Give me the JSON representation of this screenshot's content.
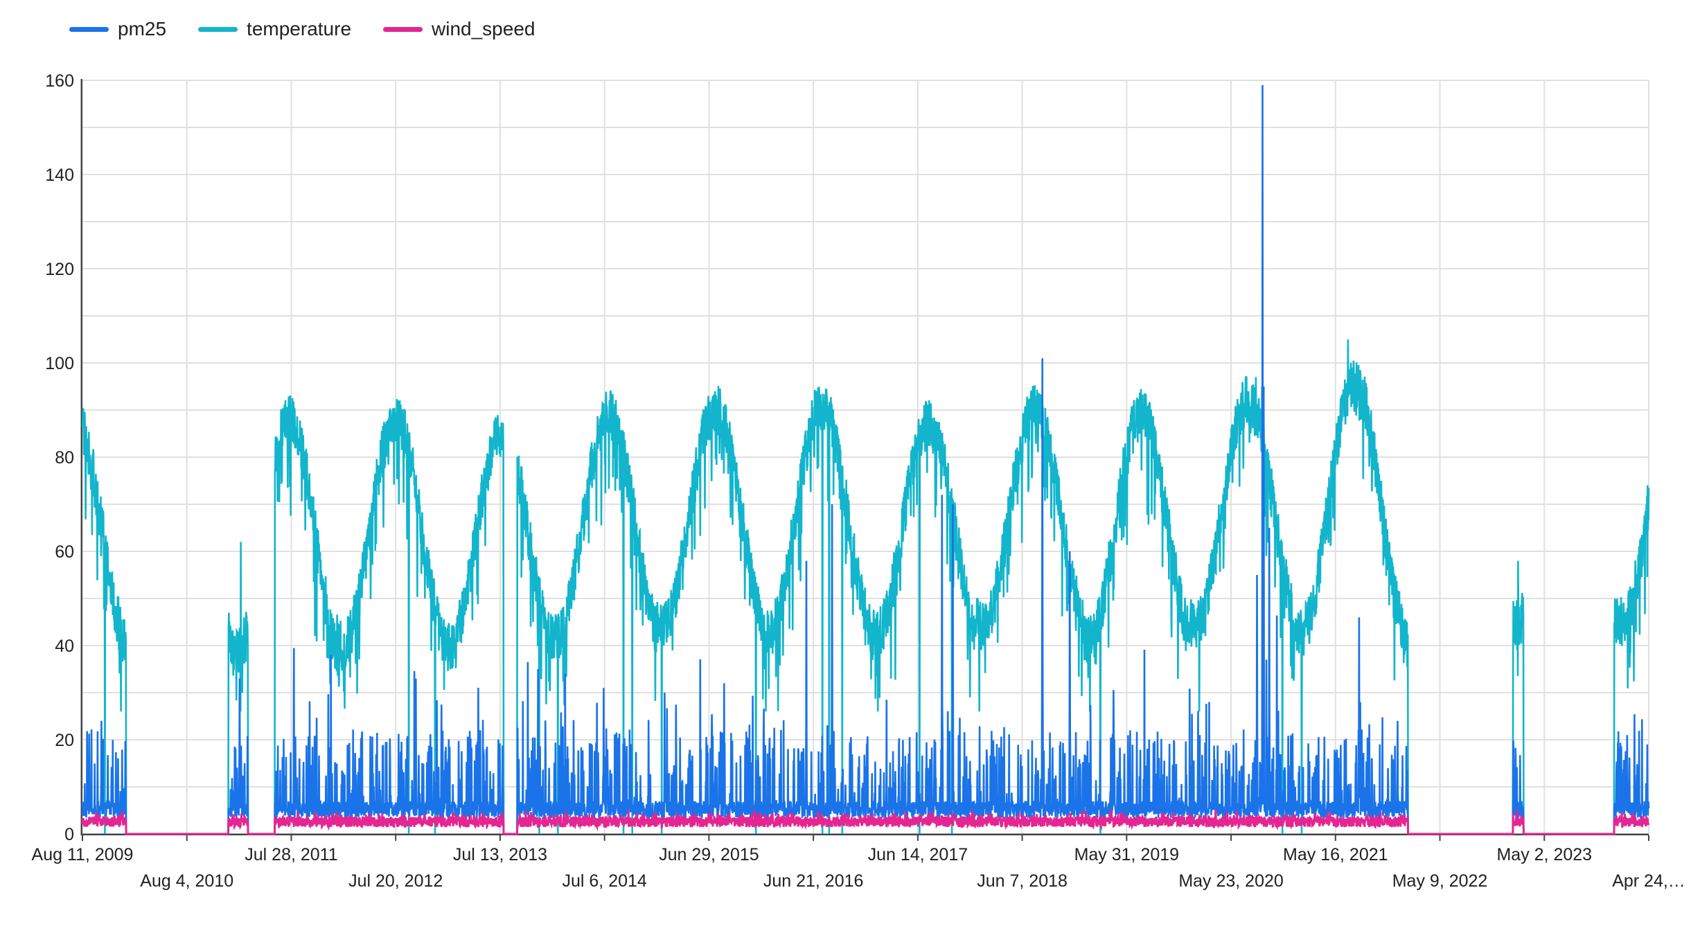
{
  "seed": 20240424,
  "colors": {
    "background": "#ffffff",
    "grid": "#e0e0e0",
    "axis": "#424242",
    "text": "#202124"
  },
  "legend": {
    "items": [
      {
        "label": "pm25",
        "color": "#1a73e8"
      },
      {
        "label": "temperature",
        "color": "#12b5cb"
      },
      {
        "label": "wind_speed",
        "color": "#e52592"
      }
    ]
  },
  "chart_data": {
    "type": "line",
    "title": "",
    "legend_position": "top-left",
    "grid": "on",
    "series": [
      {
        "name": "pm25",
        "color": "#1a73e8",
        "typical_range": [
          2,
          18
        ]
      },
      {
        "name": "temperature",
        "color": "#12b5cb",
        "typical_range": [
          30,
          95
        ]
      },
      {
        "name": "wind_speed",
        "color": "#e52592",
        "typical_range": [
          1,
          7
        ]
      }
    ],
    "x_axis": {
      "start_date": "2009-08-11",
      "end_date": "2024-04-24",
      "tick_interval_days": 358,
      "ticks": [
        {
          "label": "Aug 11, 2009",
          "row": 1
        },
        {
          "label": "Aug 4, 2010",
          "row": 2
        },
        {
          "label": "Jul 28, 2011",
          "row": 1
        },
        {
          "label": "Jul 20, 2012",
          "row": 2
        },
        {
          "label": "Jul 13, 2013",
          "row": 1
        },
        {
          "label": "Jul 6, 2014",
          "row": 2
        },
        {
          "label": "Jun 29, 2015",
          "row": 1
        },
        {
          "label": "Jun 21, 2016",
          "row": 2
        },
        {
          "label": "Jun 14, 2017",
          "row": 1
        },
        {
          "label": "Jun 7, 2018",
          "row": 2
        },
        {
          "label": "May 31, 2019",
          "row": 1
        },
        {
          "label": "May 23, 2020",
          "row": 2
        },
        {
          "label": "May 16, 2021",
          "row": 1
        },
        {
          "label": "May 9, 2022",
          "row": 2
        },
        {
          "label": "May 2, 2023",
          "row": 1
        },
        {
          "label": "Apr 24,…",
          "row": 2
        }
      ]
    },
    "y_axis": {
      "min": 0,
      "max": 160,
      "label_step": 20,
      "grid_step": 10,
      "tick_labels": [
        "0",
        "20",
        "40",
        "60",
        "80",
        "100",
        "120",
        "140",
        "160"
      ]
    },
    "y_max_observed": 159,
    "gaps": [
      [
        "2010-01-08",
        "2010-12-25"
      ],
      [
        "2011-03-02",
        "2011-06-02"
      ],
      [
        "2013-07-25",
        "2013-09-10"
      ],
      [
        "2022-01-20",
        "2023-01-15"
      ],
      [
        "2023-02-20",
        "2023-12-28"
      ]
    ],
    "series_detail": {
      "temperature": {
        "seasonal": "annual cycle, summer peak late July, winter low mid January",
        "summer_peaks": {
          "2009": 87,
          "2010": 88,
          "2011": 88,
          "2012": 88,
          "2013": 86,
          "2014": 89,
          "2015": 90,
          "2016": 91,
          "2017": 87,
          "2018": 90,
          "2019": 89,
          "2020": 92,
          "2021": 96,
          "2022": 90,
          "2023": 88,
          "2024": 90
        },
        "winter_lows": {
          "2009": 40,
          "2010": 40,
          "2011": 38,
          "2012": 40,
          "2013": 40,
          "2014": 42,
          "2015": 44,
          "2016": 43,
          "2017": 42,
          "2018": 44,
          "2019": 41,
          "2020": 44,
          "2021": 43,
          "2022": 40,
          "2023": 44,
          "2024": 45
        },
        "daily_noise": 11,
        "heat_spikes": {
          "2011-02-05": 62,
          "2015-07-20": 94,
          "2018-07-25": 93,
          "2020-08-16": 97,
          "2020-09-06": 95,
          "2021-06-28": 105,
          "2021-07-10": 99,
          "2023-02-01": 58,
          "2024-04-20": 74
        },
        "dropout_dates": [
          "2009-10-27",
          "2012-09-03",
          "2012-12-02",
          "2013-11-24",
          "2014-01-27",
          "2014-09-09",
          "2014-10-09",
          "2015-01-18",
          "2015-12-07",
          "2016-07-22",
          "2016-08-14",
          "2016-09-28",
          "2017-06-20",
          "2017-10-09",
          "2019-03-02",
          "2020-11-15",
          "2021-01-20"
        ]
      },
      "pm25": {
        "baseline": 5.2,
        "spikes": {
          "2009-10-15": 24,
          "2011-02-01": 33,
          "2012-09-27": 33,
          "2013-11-20": 35,
          "2014-07-03": 31,
          "2015-01-28": 30,
          "2015-08-20": 32,
          "2016-05-28": 58,
          "2016-08-24": 70,
          "2017-09-05": 72,
          "2017-10-12": 70,
          "2018-08-15": 101,
          "2018-11-17": 60,
          "2019-06-12": 22,
          "2020-08-20": 55,
          "2020-09-08": 159,
          "2020-09-12": 95,
          "2020-10-01": 65,
          "2021-08-05": 46,
          "2021-12-15": 24,
          "2024-02-10": 21
        }
      },
      "wind_speed": {
        "baseline": 2.6,
        "typical_range": [
          1,
          7
        ]
      }
    }
  }
}
